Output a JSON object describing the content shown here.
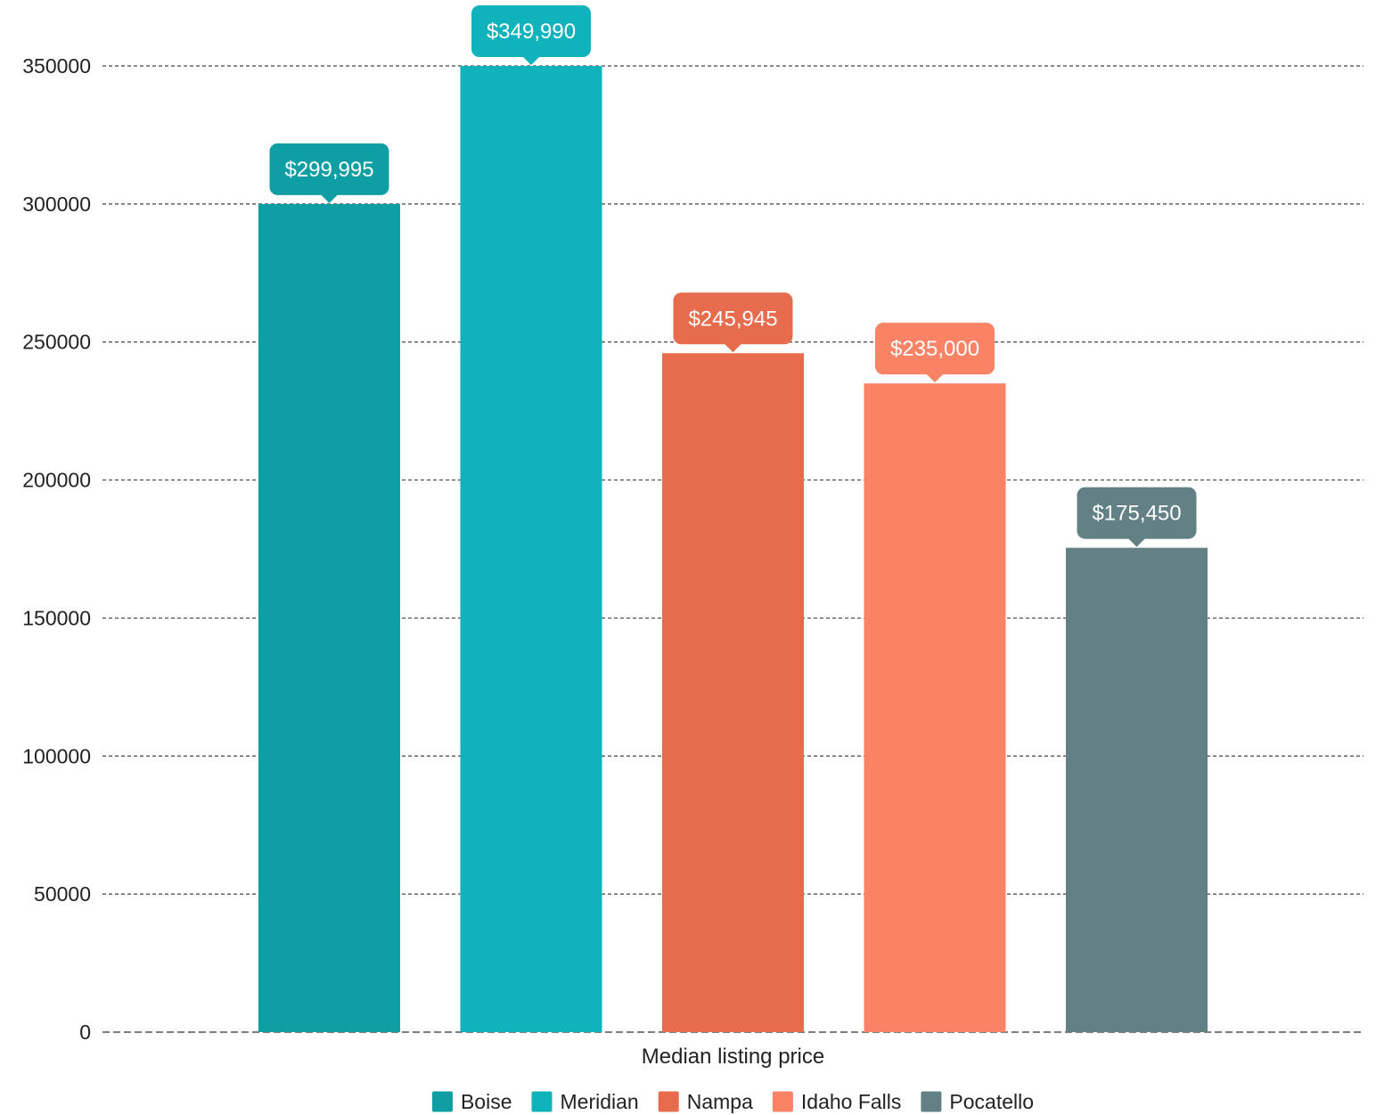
{
  "chart_data": {
    "type": "bar",
    "categories": [
      "Median listing price"
    ],
    "series": [
      {
        "name": "Boise",
        "values": [
          299995
        ],
        "label": "$299,995",
        "color": "#0f9ea4"
      },
      {
        "name": "Meridian",
        "values": [
          349990
        ],
        "label": "$349,990",
        "color": "#10b3bb"
      },
      {
        "name": "Nampa",
        "values": [
          245945
        ],
        "label": "$245,945",
        "color": "#e76b4d"
      },
      {
        "name": "Idaho Falls",
        "values": [
          235000
        ],
        "label": "$235,000",
        "color": "#fa8366"
      },
      {
        "name": "Pocatello",
        "values": [
          175450
        ],
        "label": "$175,450",
        "color": "#638185"
      }
    ],
    "ylim": [
      0,
      350000
    ],
    "yticks": [
      0,
      50000,
      100000,
      150000,
      200000,
      250000,
      300000,
      350000
    ],
    "ytick_labels": [
      "0",
      "50000",
      "100000",
      "150000",
      "200000",
      "250000",
      "300000",
      "350000"
    ],
    "grid": true,
    "legend_position": "bottom-center",
    "title": "",
    "xlabel": "",
    "ylabel": ""
  }
}
